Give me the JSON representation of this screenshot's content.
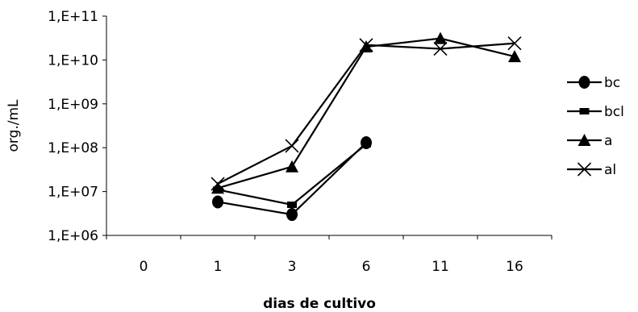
{
  "chart_data": {
    "type": "line",
    "xlabel": "dias de cultivo",
    "ylabel": "org./mL",
    "categories": [
      "0",
      "1",
      "3",
      "6",
      "11",
      "16"
    ],
    "y_scale": "log",
    "ylim": [
      1000000,
      100000000000
    ],
    "y_ticks": [
      {
        "value": 1000000,
        "label": "1,E+06"
      },
      {
        "value": 10000000,
        "label": "1,E+07"
      },
      {
        "value": 100000000,
        "label": "1,E+08"
      },
      {
        "value": 1000000000,
        "label": "1,E+09"
      },
      {
        "value": 10000000000,
        "label": "1,E+10"
      },
      {
        "value": 100000000000,
        "label": "1,E+11"
      }
    ],
    "grid": false,
    "legend_position": "right",
    "series": [
      {
        "name": "bc",
        "marker": "circle",
        "color": "#000000",
        "values": [
          null,
          5800000,
          3000000,
          130000000,
          null,
          null
        ]
      },
      {
        "name": "bcl",
        "marker": "square",
        "color": "#000000",
        "values": [
          null,
          11000000,
          5000000,
          120000000,
          null,
          null
        ]
      },
      {
        "name": "a",
        "marker": "triangle",
        "color": "#000000",
        "values": [
          null,
          12000000,
          37000000,
          20000000000,
          31000000000,
          12000000000
        ]
      },
      {
        "name": "al",
        "marker": "x",
        "color": "#000000",
        "values": [
          null,
          15000000,
          110000000,
          22000000000,
          18000000000,
          24000000000
        ]
      }
    ]
  }
}
